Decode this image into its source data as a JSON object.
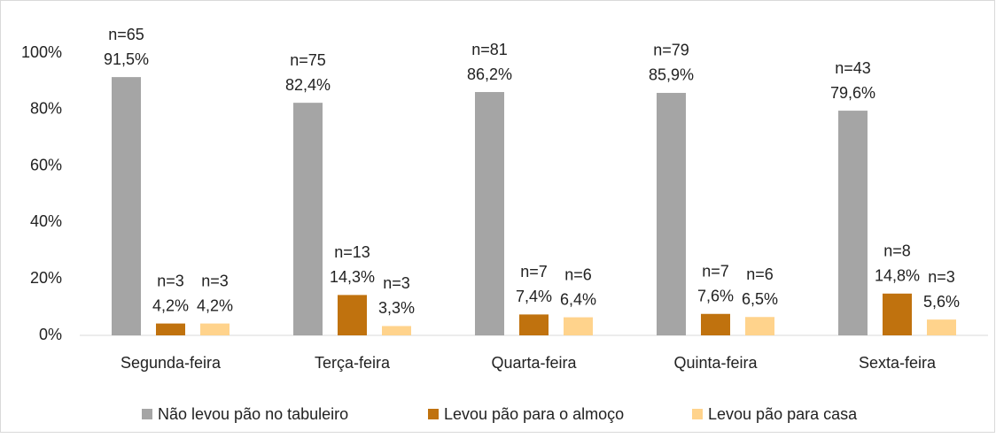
{
  "chart_data": {
    "type": "bar",
    "categories": [
      "Segunda-feira",
      "Terça-feira",
      "Quarta-feira",
      "Quinta-feira",
      "Sexta-feira"
    ],
    "series": [
      {
        "name": "Não levou pão no tabuleiro",
        "color": "#a5a5a5",
        "values": [
          91.5,
          82.4,
          86.2,
          85.9,
          79.6
        ],
        "value_labels": [
          "91,5%",
          "82,4%",
          "86,2%",
          "85,9%",
          "79,6%"
        ],
        "n_labels": [
          "n=65",
          "n=75",
          "n=81",
          "n=79",
          "n=43"
        ]
      },
      {
        "name": "Levou pão para o almoço",
        "color": "#c0720e",
        "values": [
          4.2,
          14.3,
          7.4,
          7.6,
          14.8
        ],
        "value_labels": [
          "4,2%",
          "14,3%",
          "7,4%",
          "7,6%",
          "14,8%"
        ],
        "n_labels": [
          "n=3",
          "n=13",
          "n=7",
          "n=7",
          "n=8"
        ]
      },
      {
        "name": "Levou pão para casa",
        "color": "#ffd38c",
        "values": [
          4.2,
          3.3,
          6.4,
          6.5,
          5.6
        ],
        "value_labels": [
          "4,2%",
          "3,3%",
          "6,4%",
          "6,5%",
          "5,6%"
        ],
        "n_labels": [
          "n=3",
          "n=3",
          "n=6",
          "n=6",
          "n=3"
        ]
      }
    ],
    "ylim": [
      0,
      100
    ],
    "yticks": [
      {
        "value": 0,
        "label": "0%"
      },
      {
        "value": 20,
        "label": "20%"
      },
      {
        "value": 40,
        "label": "40%"
      },
      {
        "value": 60,
        "label": "60%"
      },
      {
        "value": 80,
        "label": "80%"
      },
      {
        "value": 100,
        "label": "100%"
      }
    ],
    "grid": false,
    "legend": "bottom"
  }
}
